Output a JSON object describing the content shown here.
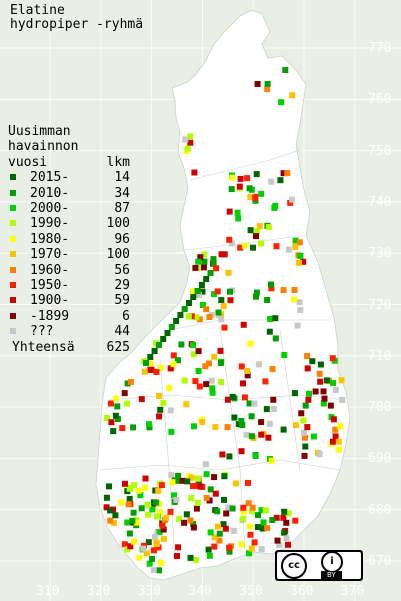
{
  "title": {
    "line1": "Elatine",
    "line2": "hydropiper -ryhmä"
  },
  "legend": {
    "heading": [
      "Uusimman",
      "havainnon"
    ],
    "col_year": "vuosi",
    "col_count": "lkm",
    "rows": [
      {
        "label": "2015-",
        "count": "14",
        "color": "#006400"
      },
      {
        "label": "2010-",
        "count": "34",
        "color": "#00a000"
      },
      {
        "label": "2000-",
        "count": "87",
        "color": "#00d000"
      },
      {
        "label": "1990-",
        "count": "100",
        "color": "#b0ff00"
      },
      {
        "label": "1980-",
        "count": "96",
        "color": "#ffff00"
      },
      {
        "label": "1970-",
        "count": "100",
        "color": "#ffc000"
      },
      {
        "label": "1960-",
        "count": "56",
        "color": "#ff8000"
      },
      {
        "label": "1950-",
        "count": "29",
        "color": "#ff2000"
      },
      {
        "label": "1900-",
        "count": "59",
        "color": "#d00000"
      },
      {
        "label": "-1899",
        "count": "6",
        "color": "#800000"
      },
      {
        "label": "???",
        "count": "44",
        "color": "#c8c8c8"
      }
    ],
    "total_label": "Yhteensä",
    "total_count": "625"
  },
  "y_axis_ticks": [
    "770",
    "760",
    "750",
    "740",
    "730",
    "720",
    "710",
    "700",
    "690",
    "680",
    "670"
  ],
  "x_axis_ticks": [
    "310",
    "320",
    "330",
    "340",
    "350",
    "360",
    "370"
  ],
  "license": {
    "cc": "cc",
    "by_icon": "person-icon",
    "by": "BY"
  }
}
